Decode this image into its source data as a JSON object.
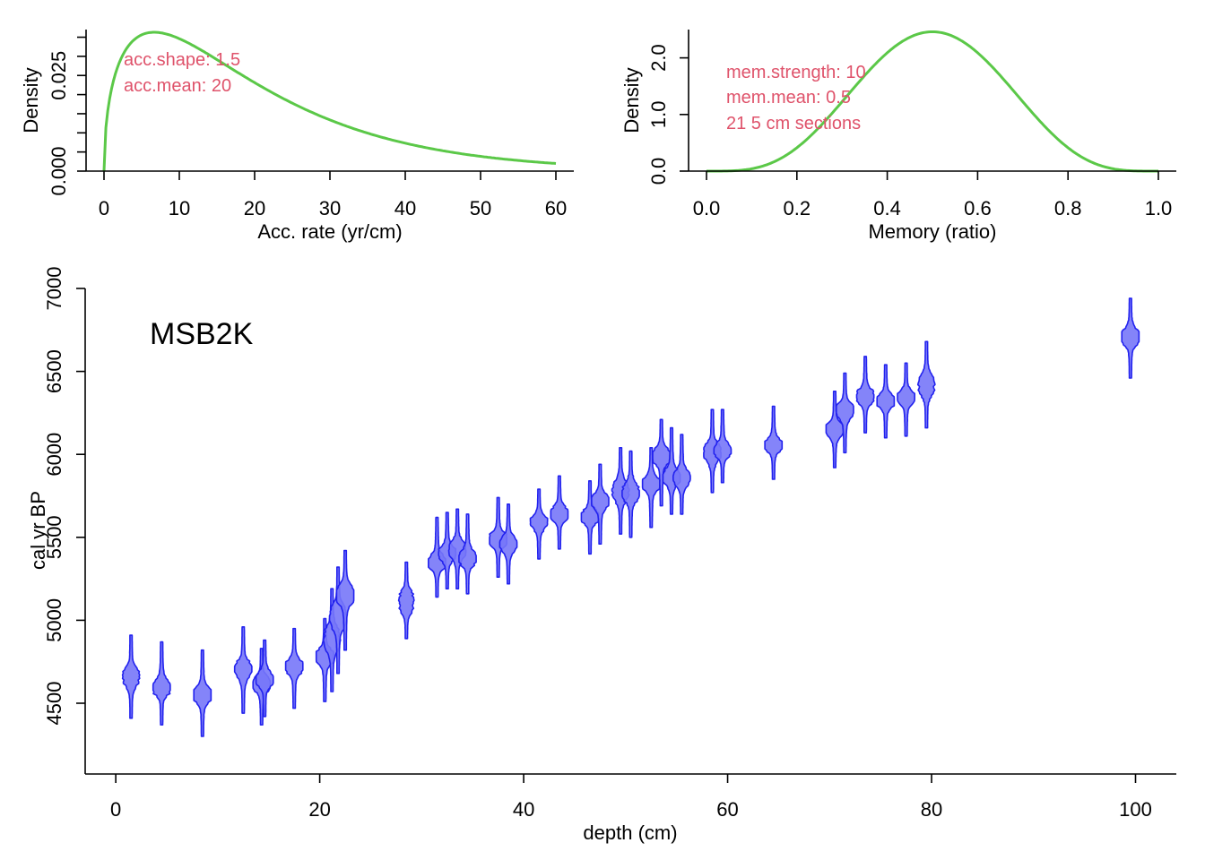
{
  "colors": {
    "curve": "#5bc848",
    "annotation": "#df536b",
    "violin_fill": "#7777f8",
    "violin_stroke": "#2222ee",
    "axis": "#000000"
  },
  "chart_data": [
    {
      "id": "acc",
      "type": "line",
      "title": "",
      "xlabel": "Acc. rate (yr/cm)",
      "ylabel": "Density",
      "xlim": [
        0,
        60
      ],
      "ylim": [
        0,
        0.037
      ],
      "x_ticks": [
        "0",
        "10",
        "20",
        "30",
        "40",
        "50",
        "60"
      ],
      "y_ticks": [
        "0.000",
        "0.025"
      ],
      "annotations": [
        "acc.shape:  1.5",
        "acc.mean:  20"
      ],
      "series": [
        {
          "distribution": "gamma",
          "shape": 1.5,
          "mean": 20,
          "x_range": [
            0,
            60
          ]
        }
      ]
    },
    {
      "id": "mem",
      "type": "line",
      "title": "",
      "xlabel": "Memory (ratio)",
      "ylabel": "Density",
      "xlim": [
        0,
        1
      ],
      "ylim": [
        0,
        2.5
      ],
      "x_ticks": [
        "0.0",
        "0.2",
        "0.4",
        "0.6",
        "0.8",
        "1.0"
      ],
      "y_ticks": [
        "0.0",
        "1.0",
        "2.0"
      ],
      "annotations": [
        "mem.strength:  10",
        "mem.mean:  0.5",
        "21  5 cm sections"
      ],
      "series": [
        {
          "distribution": "beta",
          "strength": 10,
          "mean": 0.5,
          "x_range": [
            0,
            1
          ]
        }
      ]
    },
    {
      "id": "dates",
      "type": "scatter",
      "title": "MSB2K",
      "xlabel": "depth (cm)",
      "ylabel": "cal yr  BP",
      "xlim": [
        -3,
        104
      ],
      "ylim": [
        4080,
        7000
      ],
      "x_ticks": [
        "0",
        "20",
        "40",
        "60",
        "80",
        "100"
      ],
      "y_ticks": [
        "4500",
        "5000",
        "5500",
        "6000",
        "6500",
        "7000"
      ],
      "dates": [
        {
          "depth": 1.5,
          "age": 4660,
          "span": 250
        },
        {
          "depth": 4.5,
          "age": 4620,
          "span": 250
        },
        {
          "depth": 8.5,
          "age": 4560,
          "span": 260
        },
        {
          "depth": 12.5,
          "age": 4700,
          "span": 260
        },
        {
          "depth": 14.3,
          "age": 4600,
          "span": 230
        },
        {
          "depth": 14.6,
          "age": 4650,
          "span": 230
        },
        {
          "depth": 17.5,
          "age": 4710,
          "span": 240
        },
        {
          "depth": 20.5,
          "age": 4760,
          "span": 250
        },
        {
          "depth": 21.2,
          "age": 4880,
          "span": 310
        },
        {
          "depth": 21.8,
          "age": 5000,
          "span": 320
        },
        {
          "depth": 22.5,
          "age": 5120,
          "span": 300
        },
        {
          "depth": 28.5,
          "age": 5120,
          "span": 230
        },
        {
          "depth": 31.5,
          "age": 5380,
          "span": 240
        },
        {
          "depth": 32.5,
          "age": 5420,
          "span": 230
        },
        {
          "depth": 33.5,
          "age": 5430,
          "span": 240
        },
        {
          "depth": 34.5,
          "age": 5400,
          "span": 240
        },
        {
          "depth": 37.5,
          "age": 5500,
          "span": 240
        },
        {
          "depth": 38.5,
          "age": 5460,
          "span": 240
        },
        {
          "depth": 41.5,
          "age": 5580,
          "span": 210
        },
        {
          "depth": 43.5,
          "age": 5650,
          "span": 220
        },
        {
          "depth": 46.5,
          "age": 5620,
          "span": 220
        },
        {
          "depth": 47.5,
          "age": 5700,
          "span": 240
        },
        {
          "depth": 49.5,
          "age": 5780,
          "span": 260
        },
        {
          "depth": 50.5,
          "age": 5760,
          "span": 260
        },
        {
          "depth": 52.5,
          "age": 5800,
          "span": 240
        },
        {
          "depth": 53.5,
          "age": 5950,
          "span": 260
        },
        {
          "depth": 54.5,
          "age": 5900,
          "span": 260
        },
        {
          "depth": 55.5,
          "age": 5880,
          "span": 240
        },
        {
          "depth": 58.5,
          "age": 6020,
          "span": 250
        },
        {
          "depth": 59.5,
          "age": 6050,
          "span": 220
        },
        {
          "depth": 64.5,
          "age": 6070,
          "span": 220
        },
        {
          "depth": 70.5,
          "age": 6150,
          "span": 230
        },
        {
          "depth": 71.5,
          "age": 6250,
          "span": 240
        },
        {
          "depth": 73.5,
          "age": 6360,
          "span": 230
        },
        {
          "depth": 75.5,
          "age": 6320,
          "span": 220
        },
        {
          "depth": 77.5,
          "age": 6330,
          "span": 220
        },
        {
          "depth": 79.5,
          "age": 6420,
          "span": 260
        },
        {
          "depth": 99.5,
          "age": 6700,
          "span": 240
        }
      ]
    }
  ]
}
